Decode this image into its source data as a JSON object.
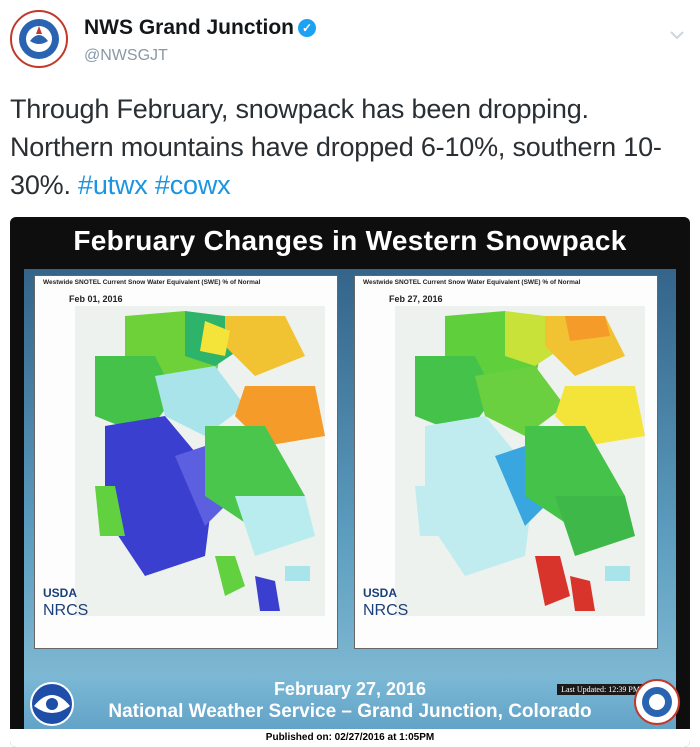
{
  "tweet": {
    "author_name": "NWS Grand Junction",
    "handle": "@NWSGJT",
    "text_part1": "Through February, snowpack has been dropping. Northern mountains have dropped 6-10%, southern 10-30%. ",
    "hashtag1": "#utwx",
    "hashtag2": "#cowx"
  },
  "image": {
    "title": "February Changes in Western Snowpack",
    "left_map": {
      "header": "Westwide SNOTEL Current Snow Water Equivalent (SWE) % of Normal",
      "date": "Feb 01, 2016"
    },
    "right_map": {
      "header": "Westwide SNOTEL Current Snow Water Equivalent (SWE) % of Normal",
      "date": "Feb 27, 2016"
    },
    "usda": "USDA",
    "nrcs": "NRCS",
    "footer_date": "February 27, 2016",
    "footer_org": "National Weather Service – Grand Junction, Colorado",
    "last_updated": "Last Updated: 12:39 PM",
    "published": "Published on: 02/27/2016 at 1:05PM"
  },
  "colors": {
    "hashtag": "#1b95e0",
    "verified": "#1da1f2"
  }
}
